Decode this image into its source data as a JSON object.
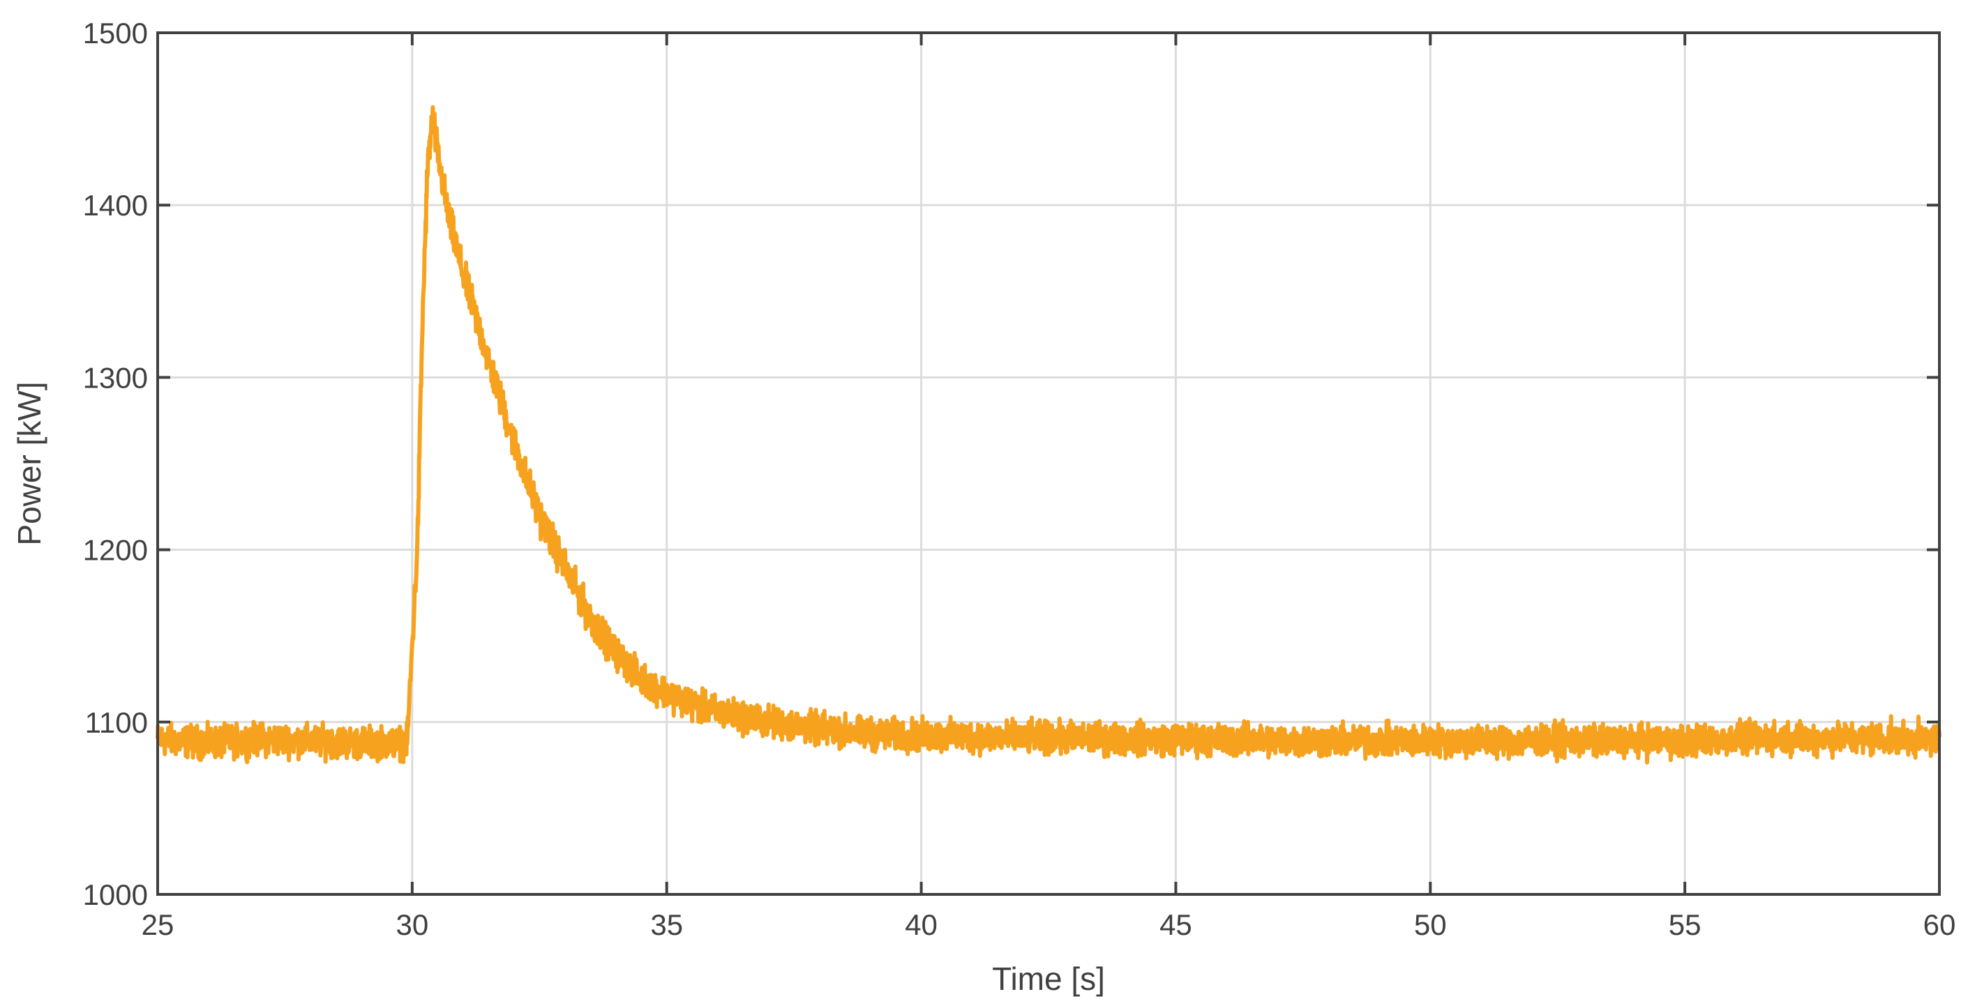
{
  "chart_data": {
    "type": "line",
    "title": "",
    "xlabel": "Time [s]",
    "ylabel": "Power [kW]",
    "xlim": [
      25,
      60
    ],
    "ylim": [
      1000,
      1500
    ],
    "xticks": [
      25,
      30,
      35,
      40,
      45,
      50,
      55,
      60
    ],
    "yticks": [
      1000,
      1100,
      1200,
      1300,
      1400,
      1500
    ],
    "xtick_labels": [
      "25",
      "30",
      "35",
      "40",
      "45",
      "50",
      "55",
      "60"
    ],
    "ytick_labels": [
      "1000",
      "1100",
      "1200",
      "1300",
      "1400",
      "1500"
    ],
    "grid": true,
    "legend": "none",
    "series": [
      {
        "color": "#F6A21E",
        "noise_amplitude": 9,
        "points": [
          [
            25.0,
            1090
          ],
          [
            26.0,
            1088
          ],
          [
            27.0,
            1090
          ],
          [
            28.0,
            1089
          ],
          [
            29.0,
            1088
          ],
          [
            29.9,
            1088
          ],
          [
            30.1,
            1200
          ],
          [
            30.2,
            1330
          ],
          [
            30.3,
            1420
          ],
          [
            30.4,
            1452
          ],
          [
            30.5,
            1430
          ],
          [
            30.7,
            1395
          ],
          [
            31.0,
            1360
          ],
          [
            31.3,
            1330
          ],
          [
            31.6,
            1300
          ],
          [
            32.0,
            1262
          ],
          [
            32.5,
            1220
          ],
          [
            33.0,
            1190
          ],
          [
            33.5,
            1160
          ],
          [
            34.0,
            1140
          ],
          [
            34.5,
            1125
          ],
          [
            35.0,
            1117
          ],
          [
            35.5,
            1110
          ],
          [
            36.0,
            1106
          ],
          [
            37.0,
            1100
          ],
          [
            38.0,
            1096
          ],
          [
            39.0,
            1093
          ],
          [
            40.0,
            1092
          ],
          [
            42.0,
            1091
          ],
          [
            45.0,
            1090
          ],
          [
            48.0,
            1089
          ],
          [
            50.0,
            1089
          ],
          [
            52.0,
            1089
          ],
          [
            55.0,
            1089
          ],
          [
            57.0,
            1091
          ],
          [
            60.0,
            1090
          ]
        ]
      }
    ]
  }
}
